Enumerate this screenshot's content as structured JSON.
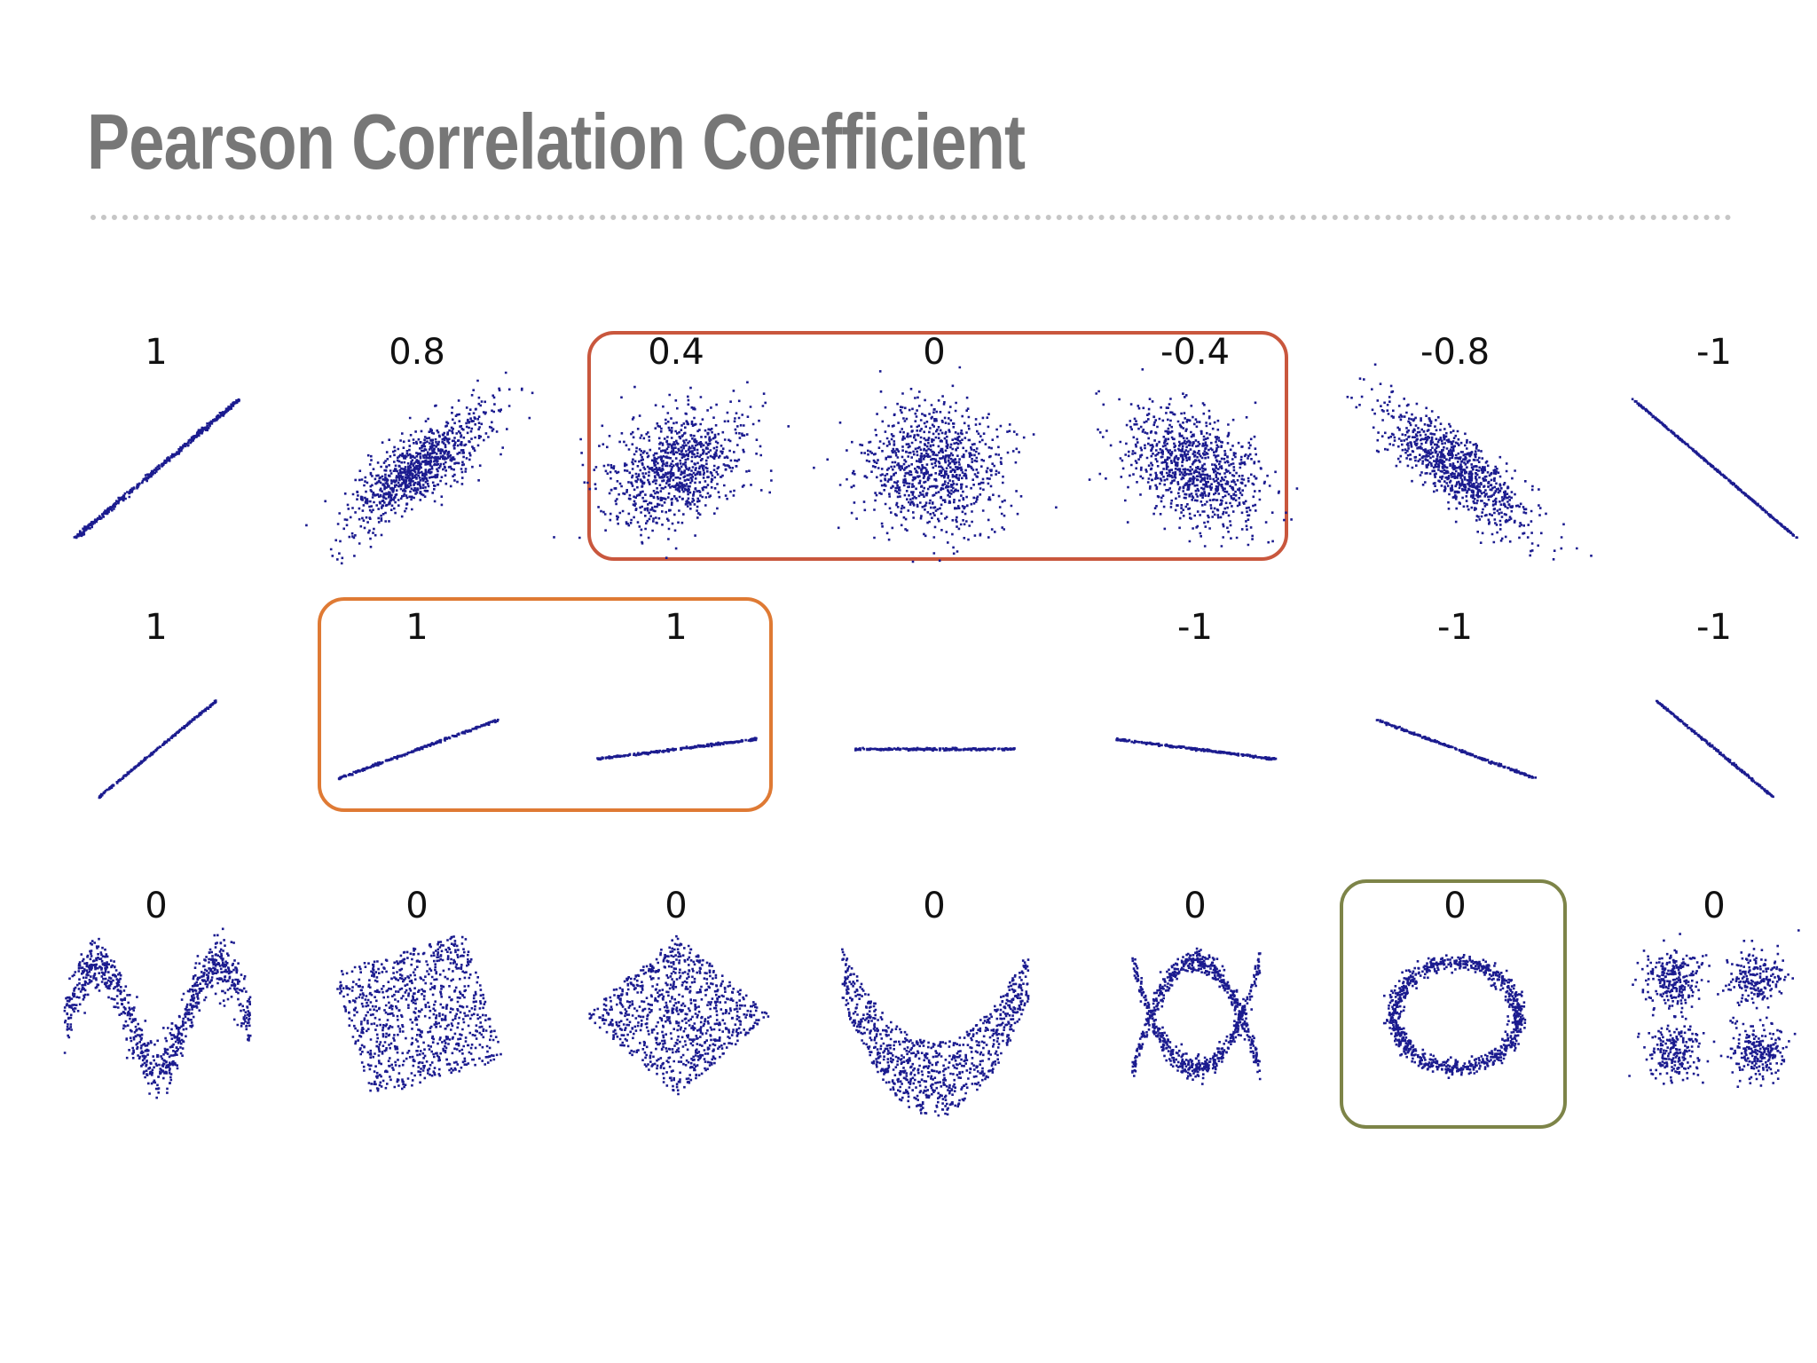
{
  "slide": {
    "title": "Pearson Correlation Coefficient"
  },
  "colors": {
    "points": "#1b1b8f",
    "title": "#777777",
    "divider": "#c6c6c6",
    "highlight_row1": "#c9573d",
    "highlight_row2": "#df7a34",
    "highlight_row3": "#7d8448"
  },
  "chart_data": [
    {
      "type": "scatter",
      "row": 1,
      "panels": [
        {
          "label": "1",
          "shape": "linear",
          "r": 1,
          "highlight": null
        },
        {
          "label": "0.8",
          "shape": "gaussian",
          "r": 0.8,
          "highlight": null
        },
        {
          "label": "0.4",
          "shape": "gaussian",
          "r": 0.4,
          "highlight": "row1"
        },
        {
          "label": "0",
          "shape": "gaussian",
          "r": 0,
          "highlight": "row1"
        },
        {
          "label": "-0.4",
          "shape": "gaussian",
          "r": -0.4,
          "highlight": "row1"
        },
        {
          "label": "-0.8",
          "shape": "gaussian",
          "r": -0.8,
          "highlight": null
        },
        {
          "label": "-1",
          "shape": "linear",
          "r": -1,
          "highlight": null
        }
      ]
    },
    {
      "type": "scatter",
      "row": 2,
      "panels": [
        {
          "label": "1",
          "shape": "line",
          "slope": 1.0,
          "highlight": null
        },
        {
          "label": "1",
          "shape": "line",
          "slope": 0.45,
          "highlight": "row2"
        },
        {
          "label": "1",
          "shape": "line",
          "slope": 0.15,
          "highlight": "row2"
        },
        {
          "label": "",
          "shape": "line",
          "slope": 0,
          "highlight": null
        },
        {
          "label": "-1",
          "shape": "line",
          "slope": -0.15,
          "highlight": null
        },
        {
          "label": "-1",
          "shape": "line",
          "slope": -0.45,
          "highlight": null
        },
        {
          "label": "-1",
          "shape": "line",
          "slope": -1.0,
          "highlight": null
        }
      ]
    },
    {
      "type": "scatter",
      "row": 3,
      "panels": [
        {
          "label": "0",
          "shape": "wave",
          "highlight": null
        },
        {
          "label": "0",
          "shape": "rotated-square",
          "highlight": null
        },
        {
          "label": "0",
          "shape": "diamond",
          "highlight": null
        },
        {
          "label": "0",
          "shape": "parabola",
          "highlight": null
        },
        {
          "label": "0",
          "shape": "x-cross",
          "highlight": null
        },
        {
          "label": "0",
          "shape": "ring",
          "highlight": "row3"
        },
        {
          "label": "0",
          "shape": "four-clusters",
          "highlight": null
        }
      ]
    }
  ]
}
